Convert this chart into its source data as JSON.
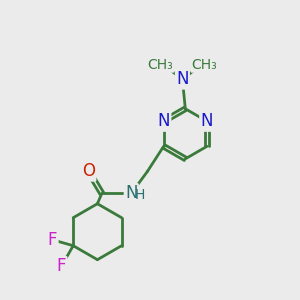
{
  "bg_color": "#ebebeb",
  "bond_color": "#3a7a3a",
  "n_color": "#1a1acc",
  "o_color": "#cc2200",
  "f_color": "#cc22cc",
  "nh_color": "#2a7070",
  "line_width": 2.0,
  "font_size": 12,
  "small_font_size": 10,
  "fig_width": 3.0,
  "fig_height": 3.0,
  "dpi": 100,
  "xlim": [
    0,
    10
  ],
  "ylim": [
    0,
    10
  ]
}
